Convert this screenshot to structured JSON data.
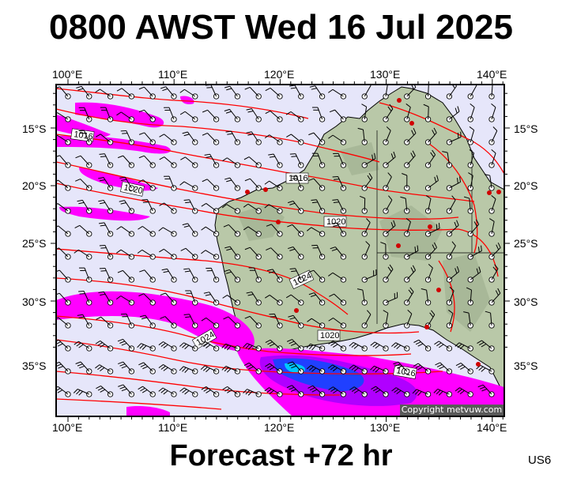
{
  "header": {
    "title": "0800 AWST Wed 16 Jul 2025"
  },
  "footer": {
    "forecast": "Forecast +72 hr",
    "region": "US6"
  },
  "map": {
    "copyright": "Copyright metvuw.com",
    "lon_labels": [
      "100°E",
      "110°E",
      "120°E",
      "130°E",
      "140°E"
    ],
    "lat_labels": [
      "15°S",
      "20°S",
      "25°S",
      "30°S",
      "35°S"
    ],
    "isobar_labels": [
      "1016",
      "1020",
      "1016",
      "1020",
      "1024",
      "1024",
      "1020",
      "1016"
    ],
    "colors": {
      "ocean": "#e6e6fa",
      "land": "#b9c8a8",
      "isobar": "#ff0000",
      "rain_light": "#ff00ff",
      "rain_medium": "#b000ff",
      "rain_heavy": "#2040ff",
      "rain_extreme": "#00c8ff"
    }
  }
}
